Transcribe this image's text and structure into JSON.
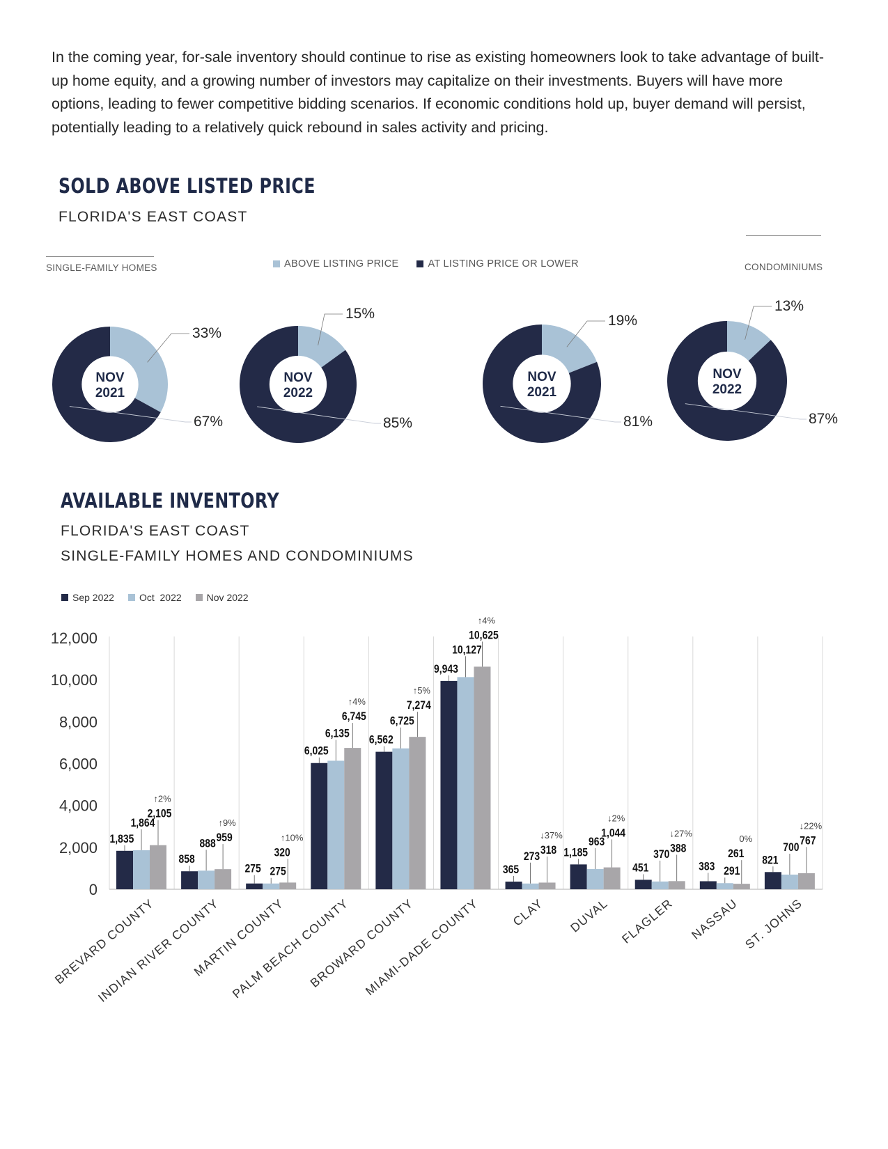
{
  "intro": "In the coming year, for-sale inventory should continue to rise as existing homeowners look to take advantage of built-up home equity, and a growing number of investors may capitalize on their investments. Buyers will have more options, leading to fewer competitive bidding scenarios. If economic conditions hold up, buyer demand will persist, potentially leading to a relatively quick rebound in sales activity and pricing.",
  "sold": {
    "title": "SOLD ABOVE LISTED PRICE",
    "subtitle": "FLORIDA'S EAST COAST",
    "left_tag": "SINGLE-FAMILY HOMES",
    "right_tag": "CONDOMINIUMS",
    "legend": [
      {
        "label": "ABOVE LISTING PRICE",
        "color": "#a9c2d6"
      },
      {
        "label": "AT LISTING PRICE OR LOWER",
        "color": "#232a47"
      }
    ]
  },
  "inventory": {
    "title": "AVAILABLE INVENTORY",
    "subtitle1": "FLORIDA'S EAST COAST",
    "subtitle2": "SINGLE-FAMILY HOMES AND CONDOMINIUMS"
  },
  "chart_data": [
    {
      "type": "pie",
      "title": "SOLD ABOVE LISTED PRICE - SINGLE-FAMILY HOMES",
      "donuts": [
        {
          "line1": "NOV",
          "line2": "2021",
          "above": 33,
          "below": 67,
          "above_label": "33%",
          "below_label": "67%"
        },
        {
          "line1": "NOV",
          "line2": "2022",
          "above": 15,
          "below": 85,
          "above_label": "15%",
          "below_label": "85%"
        }
      ]
    },
    {
      "type": "pie",
      "title": "SOLD ABOVE LISTED PRICE - CONDOMINIUMS",
      "donuts": [
        {
          "line1": "NOV",
          "line2": "2021",
          "above": 19,
          "below": 81,
          "above_label": "19%",
          "below_label": "81%"
        },
        {
          "line1": "NOV",
          "line2": "2022",
          "above": 13,
          "below": 87,
          "above_label": "13%",
          "below_label": "87%"
        }
      ]
    },
    {
      "type": "bar",
      "title": "AVAILABLE INVENTORY",
      "ylim": [
        0,
        12000
      ],
      "yticks": [
        0,
        2000,
        4000,
        6000,
        8000,
        10000,
        12000
      ],
      "ytick_labels": [
        "0",
        "2,000",
        "4,000",
        "6,000",
        "8,000",
        "10,000",
        "12,000"
      ],
      "categories": [
        "BREVARD COUNTY",
        "INDIAN RIVER COUNTY",
        "MARTIN COUNTY",
        "PALM BEACH COUNTY",
        "BROWARD COUNTY",
        "MIAMI-DADE COUNTY",
        "CLAY",
        "DUVAL",
        "FLAGLER",
        "NASSAU",
        "ST. JOHNS"
      ],
      "series": [
        {
          "name": "Sep 2022",
          "color": "#232a47",
          "values": [
            1835,
            858,
            275,
            6025,
            6562,
            9943,
            365,
            1185,
            451,
            383,
            821
          ],
          "labels": [
            "1,835",
            "858",
            "275",
            "6,025",
            "6,562",
            "9,943",
            "365",
            "1,185",
            "451",
            "383",
            "821"
          ]
        },
        {
          "name": "Oct  2022",
          "color": "#a9c2d6",
          "values": [
            1864,
            888,
            275,
            6135,
            6725,
            10127,
            273,
            963,
            370,
            291,
            700
          ],
          "labels": [
            "1,864",
            "888",
            "275",
            "6,135",
            "6,725",
            "10,127",
            "273",
            "963",
            "370",
            "291",
            "700"
          ]
        },
        {
          "name": "Nov 2022",
          "color": "#a8a6a9",
          "values": [
            2105,
            959,
            320,
            6745,
            7274,
            10625,
            318,
            1044,
            388,
            261,
            767
          ],
          "labels": [
            "2,105",
            "959",
            "320",
            "6,745",
            "7,274",
            "10,625",
            "318",
            "1,044",
            "388",
            "261",
            "767"
          ]
        }
      ],
      "changes": [
        "↑2%",
        "↑9%",
        "↑10%",
        "↑4%",
        "↑5%",
        "↑4%",
        "↓37%",
        "↓2%",
        "↓27%",
        "0%",
        "↓22%"
      ]
    }
  ]
}
